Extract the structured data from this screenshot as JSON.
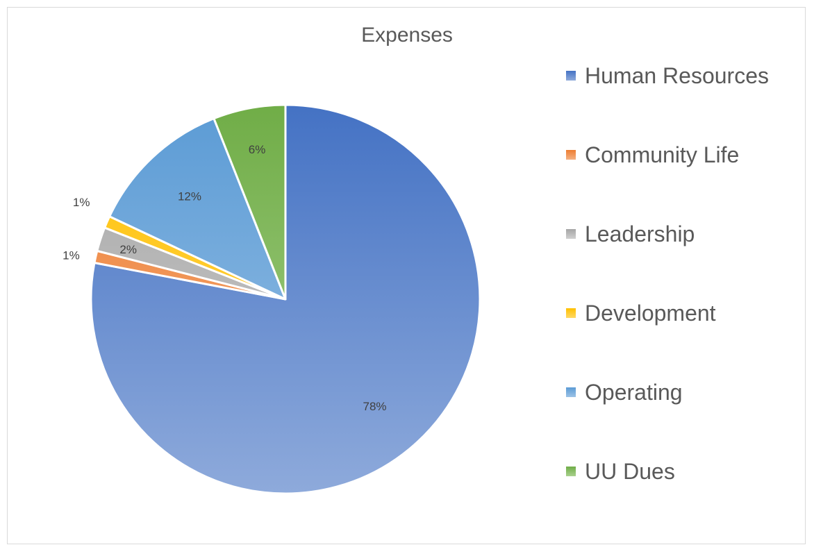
{
  "chart_data": {
    "type": "pie",
    "title": "Expenses",
    "slices": [
      {
        "name": "Human Resources",
        "value": 78,
        "label": "78%",
        "color": "#4472c4",
        "color_light": "#8eaadb"
      },
      {
        "name": "Community Life",
        "value": 1,
        "label": "1%",
        "color": "#ed7d31",
        "color_light": "#f4b183"
      },
      {
        "name": "Leadership",
        "value": 2,
        "label": "2%",
        "color": "#a5a5a5",
        "color_light": "#d0d0d0"
      },
      {
        "name": "Development",
        "value": 1,
        "label": "1%",
        "color": "#ffc000",
        "color_light": "#ffd966"
      },
      {
        "name": "Operating",
        "value": 12,
        "label": "12%",
        "color": "#5b9bd5",
        "color_light": "#9dc3e6"
      },
      {
        "name": "UU Dues",
        "value": 6,
        "label": "6%",
        "color": "#70ad47",
        "color_light": "#a9d18e"
      }
    ],
    "legend_position": "right",
    "start_angle": "12 o'clock, clockwise"
  }
}
